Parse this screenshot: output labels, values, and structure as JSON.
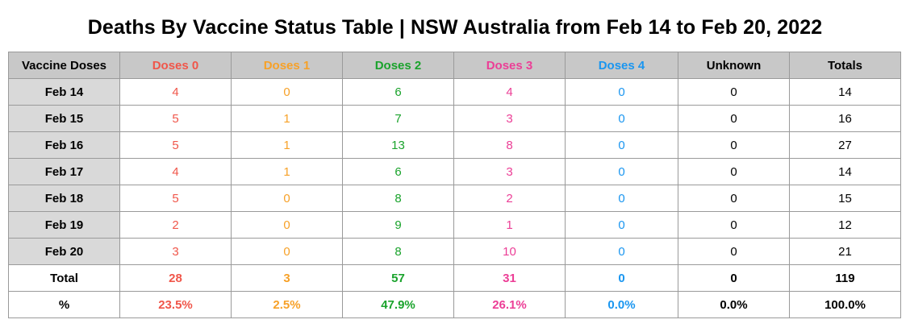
{
  "title": "Deaths By Vaccine Status Table | NSW Australia from Feb 14 to Feb 20, 2022",
  "chart_data": {
    "type": "table",
    "columns": [
      "Vaccine Doses",
      "Doses 0",
      "Doses 1",
      "Doses 2",
      "Doses 3",
      "Doses 4",
      "Unknown",
      "Totals"
    ],
    "column_colors": [
      "#000000",
      "#f0564a",
      "#f7a128",
      "#1aa32c",
      "#ec3e96",
      "#1a96f0",
      "#000000",
      "#000000"
    ],
    "rows": [
      {
        "label": "Feb 14",
        "values": [
          "4",
          "0",
          "6",
          "4",
          "0",
          "0",
          "14"
        ]
      },
      {
        "label": "Feb 15",
        "values": [
          "5",
          "1",
          "7",
          "3",
          "0",
          "0",
          "16"
        ]
      },
      {
        "label": "Feb 16",
        "values": [
          "5",
          "1",
          "13",
          "8",
          "0",
          "0",
          "27"
        ]
      },
      {
        "label": "Feb 17",
        "values": [
          "4",
          "1",
          "6",
          "3",
          "0",
          "0",
          "14"
        ]
      },
      {
        "label": "Feb 18",
        "values": [
          "5",
          "0",
          "8",
          "2",
          "0",
          "0",
          "15"
        ]
      },
      {
        "label": "Feb 19",
        "values": [
          "2",
          "0",
          "9",
          "1",
          "0",
          "0",
          "12"
        ]
      },
      {
        "label": "Feb 20",
        "values": [
          "3",
          "0",
          "8",
          "10",
          "0",
          "0",
          "21"
        ]
      }
    ],
    "total": {
      "label": "Total",
      "values": [
        "28",
        "3",
        "57",
        "31",
        "0",
        "0",
        "119"
      ]
    },
    "percent": {
      "label": "%",
      "values": [
        "23.5%",
        "2.5%",
        "47.9%",
        "26.1%",
        "0.0%",
        "0.0%",
        "100.0%"
      ]
    }
  }
}
